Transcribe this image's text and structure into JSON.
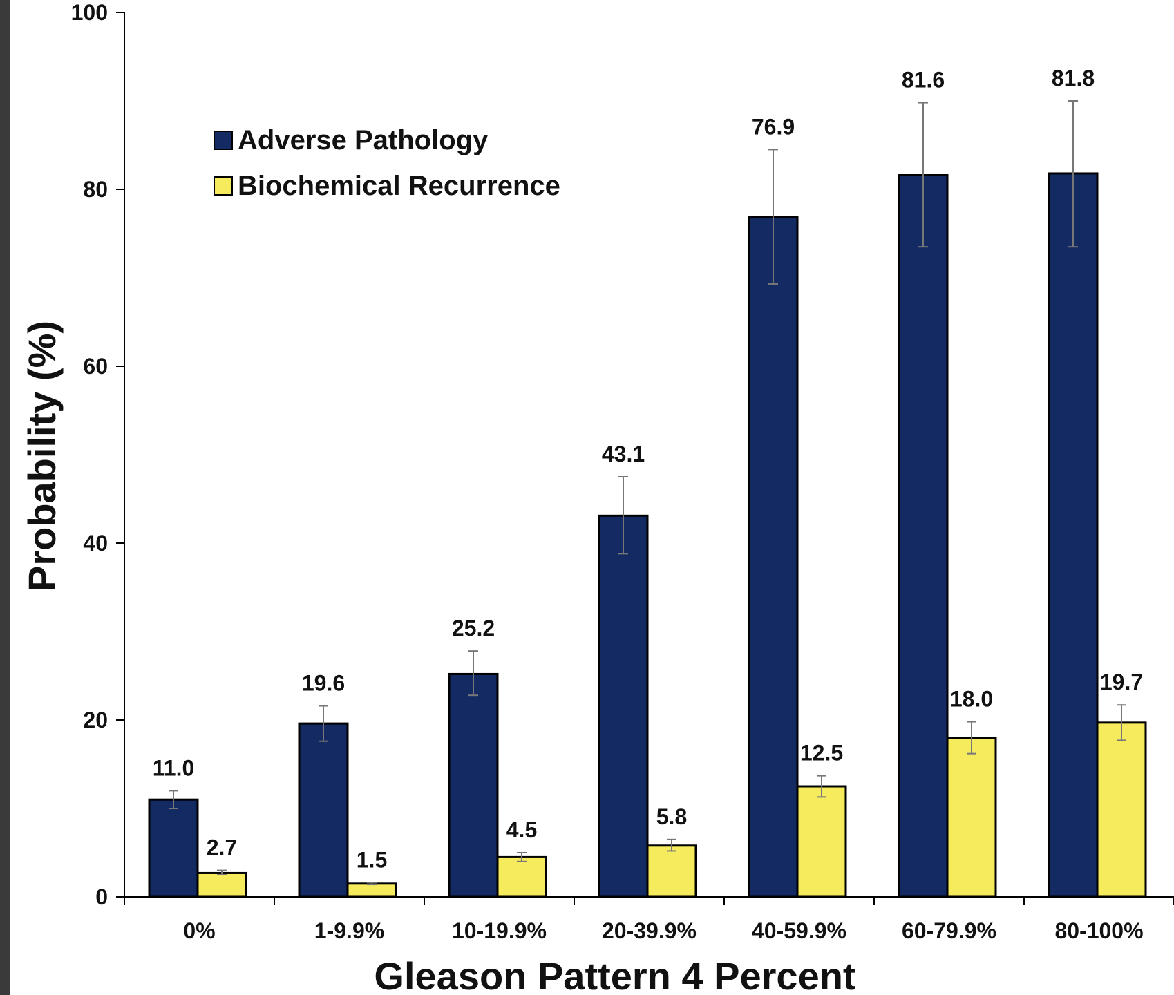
{
  "chart_data": {
    "type": "bar",
    "title": "",
    "xlabel": "Gleason Pattern 4 Percent",
    "ylabel": "Probability (%)",
    "ylim": [
      0,
      100
    ],
    "yticks": [
      0,
      20,
      40,
      60,
      80,
      100
    ],
    "categories": [
      "0%",
      "1-9.9%",
      "10-19.9%",
      "20-39.9%",
      "40-59.9%",
      "60-79.9%",
      "80-100%"
    ],
    "series": [
      {
        "name": "Adverse Pathology",
        "color": "#142a63",
        "values": [
          11.0,
          19.6,
          25.2,
          43.1,
          76.9,
          81.6,
          81.8
        ],
        "labels": [
          "11.0",
          "19.6",
          "25.2",
          "43.1",
          "76.9",
          "81.6",
          "81.8"
        ],
        "err_low": [
          10.0,
          17.6,
          22.8,
          38.8,
          69.3,
          73.5,
          73.5
        ],
        "err_high": [
          12.0,
          21.6,
          27.8,
          47.5,
          84.5,
          89.8,
          90.0
        ]
      },
      {
        "name": "Biochemical Recurrence",
        "color": "#f5eb5c",
        "values": [
          2.7,
          1.5,
          4.5,
          5.8,
          12.5,
          18.0,
          19.7
        ],
        "labels": [
          "2.7",
          "1.5",
          "4.5",
          "5.8",
          "12.5",
          "18.0",
          "19.7"
        ],
        "err_low": [
          2.5,
          1.4,
          4.0,
          5.2,
          11.3,
          16.2,
          17.7
        ],
        "err_high": [
          3.0,
          1.6,
          5.0,
          6.5,
          13.7,
          19.8,
          21.7
        ]
      }
    ],
    "legend_position": "top-left",
    "grid": false
  }
}
